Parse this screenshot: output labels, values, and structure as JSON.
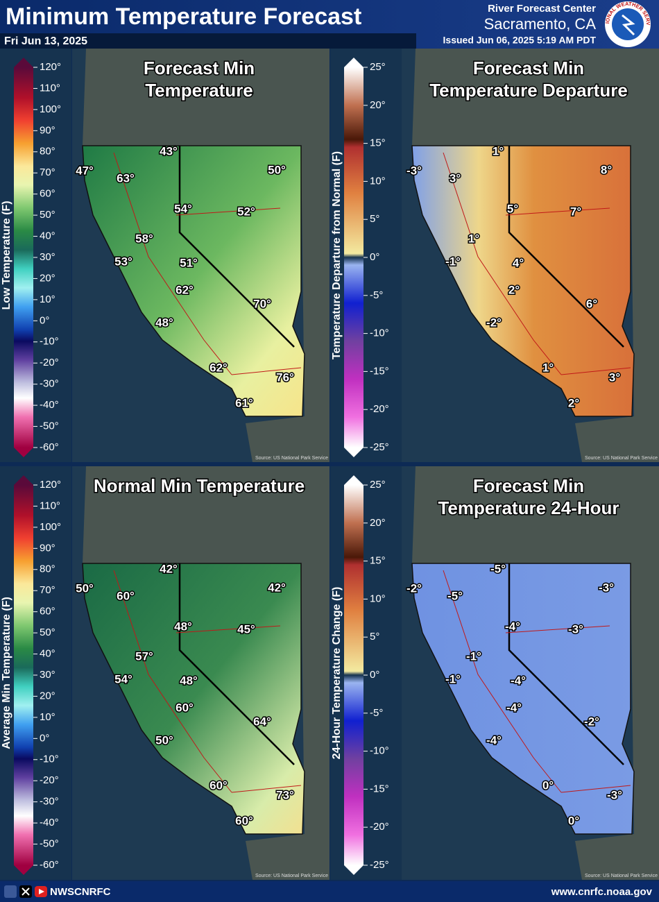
{
  "header": {
    "title": "Minimum Temperature Forecast",
    "date": "Fri Jun 13, 2025",
    "office": "River Forecast Center",
    "location": "Sacramento, CA",
    "issued": "Issued Jun 06, 2025 5:19 AM PDT",
    "logo_text": "NATIONAL WEATHER SERVICE"
  },
  "scales": [
    {
      "label": "Low Temperature (F)",
      "ticks": [
        "120°",
        "110°",
        "100°",
        "90°",
        "80°",
        "70°",
        "60°",
        "50°",
        "40°",
        "30°",
        "20°",
        "10°",
        "0°",
        "-10°",
        "-20°",
        "-30°",
        "-40°",
        "-50°",
        "-60°"
      ]
    },
    {
      "label": "Temperature Departure from Normal (F)",
      "ticks": [
        "25°",
        "20°",
        "15°",
        "10°",
        "5°",
        "0°",
        "-5°",
        "-10°",
        "-15°",
        "-20°",
        "-25°"
      ]
    },
    {
      "label": "Average Min Temperature (F)",
      "ticks": [
        "120°",
        "110°",
        "100°",
        "90°",
        "80°",
        "70°",
        "60°",
        "50°",
        "40°",
        "30°",
        "20°",
        "10°",
        "0°",
        "-10°",
        "-20°",
        "-30°",
        "-40°",
        "-50°",
        "-60°"
      ]
    },
    {
      "label": "24-Hour Temperature Change (F)",
      "ticks": [
        "25°",
        "20°",
        "15°",
        "10°",
        "5°",
        "0°",
        "-5°",
        "-10°",
        "-15°",
        "-20°",
        "-25°"
      ]
    }
  ],
  "panels": [
    {
      "title_lines": [
        "Forecast Min",
        "Temperature"
      ],
      "labels": [
        "43°",
        "47°",
        "63°",
        "50°",
        "54°",
        "52°",
        "58°",
        "53°",
        "51°",
        "62°",
        "70°",
        "48°",
        "62°",
        "76°",
        "61°"
      ],
      "source": "Source: US National Park Service"
    },
    {
      "title_lines": [
        "Forecast Min",
        "Temperature Departure"
      ],
      "labels": [
        "1°",
        "-3°",
        "3°",
        "8°",
        "5°",
        "7°",
        "1°",
        "-1°",
        "4°",
        "2°",
        "6°",
        "-2°",
        "1°",
        "3°",
        "2°"
      ],
      "source": "Source: US National Park Service"
    },
    {
      "title_lines": [
        "Normal Min Temperature"
      ],
      "labels": [
        "42°",
        "50°",
        "60°",
        "42°",
        "48°",
        "45°",
        "57°",
        "54°",
        "48°",
        "60°",
        "64°",
        "50°",
        "60°",
        "73°",
        "60°"
      ],
      "source": "Source: US National Park Service"
    },
    {
      "title_lines": [
        "Forecast Min",
        "Temperature 24-Hour"
      ],
      "labels": [
        "-5°",
        "-2°",
        "-5°",
        "-3°",
        "-4°",
        "-3°",
        "-1°",
        "-1°",
        "-4°",
        "-4°",
        "-2°",
        "-4°",
        "0°",
        "-3°",
        "0°"
      ],
      "source": "Source: US National Park Service"
    }
  ],
  "footer": {
    "handle": "NWSCNRFC",
    "url": "www.cnrfc.noaa.gov"
  }
}
